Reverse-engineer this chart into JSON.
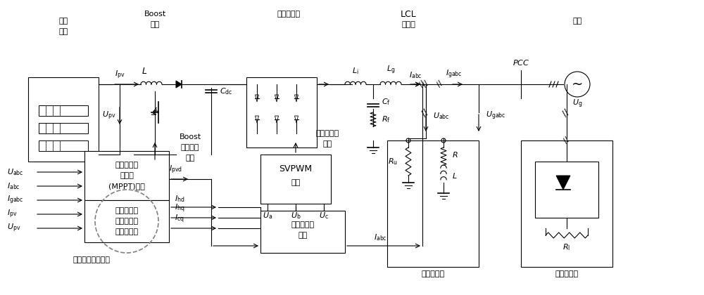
{
  "bg_color": "#ffffff",
  "line_color": "#000000",
  "title_fontsize": 10,
  "label_fontsize": 9,
  "small_fontsize": 8,
  "labels": {
    "guangfu_zuochuan": "光伏\n组串",
    "boost_dianlu": "Boost\n电路",
    "sanxiang_bianbianqi": "三相逆变器",
    "lcl_lvboqi": "LCL\n滤波器",
    "pcc": "PCC",
    "diangwang": "电网",
    "mppt": "光伏最大功\n率跟踪\n(MPPT)环节",
    "harmonic_detect": "谐波、无功\n、不平衡电\n流检测环节",
    "svpwm": "SVPWM\n调制",
    "current_ctrl": "电流内环控\n制器",
    "outer_loop": "多功能逆变器外环",
    "boost_signal": "Boost\n电路调制\n信号",
    "inverter_signal": "逆变器调制\n信号",
    "unbalanced_load": "不平衡负载",
    "nonlinear_load": "非线性负载"
  }
}
